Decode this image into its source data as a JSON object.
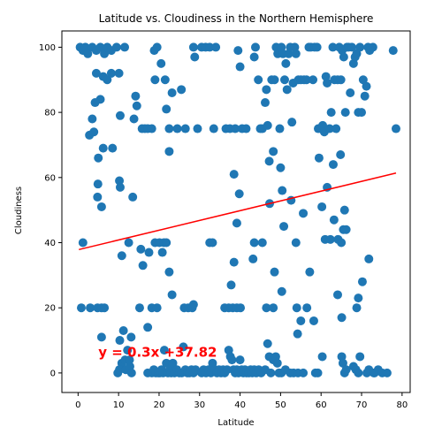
{
  "chart_data": {
    "type": "scatter",
    "title": "Latitude vs. Cloudiness in the Northern Hemisphere",
    "xlabel": "Latitude",
    "ylabel": "Cloudiness",
    "xlim": [
      -4,
      82
    ],
    "ylim": [
      -6,
      105
    ],
    "xticks": [
      0,
      10,
      20,
      30,
      40,
      50,
      60,
      70,
      80
    ],
    "yticks": [
      0,
      20,
      40,
      60,
      80,
      100
    ],
    "grid": false,
    "marker_color": "#1f77b4",
    "regression": {
      "slope": 0.3,
      "intercept": 37.82,
      "x_range": [
        0.2,
        78.5
      ],
      "color": "#ff0000",
      "equation": "y = 0.3x +37.82",
      "equation_anchor": [
        5,
        5
      ]
    },
    "series": [
      {
        "values": [
          [
            0.5,
            100
          ],
          [
            1.2,
            99
          ],
          [
            1.8,
            100
          ],
          [
            2.4,
            98
          ],
          [
            3.5,
            100
          ],
          [
            4.5,
            99
          ],
          [
            5.5,
            100
          ],
          [
            6.5,
            98
          ],
          [
            7.2,
            100
          ],
          [
            8.2,
            99
          ],
          [
            9.5,
            100
          ],
          [
            11.5,
            100
          ],
          [
            2.8,
            73
          ],
          [
            3.5,
            78
          ],
          [
            4.5,
            92
          ],
          [
            5.5,
            84
          ],
          [
            6.2,
            91
          ],
          [
            7.2,
            90
          ],
          [
            8.2,
            92
          ],
          [
            10.1,
            92
          ],
          [
            10.4,
            79
          ],
          [
            3.9,
            74
          ],
          [
            4.2,
            83
          ],
          [
            4.8,
            54
          ],
          [
            4.9,
            58
          ],
          [
            5.0,
            66
          ],
          [
            5.8,
            51
          ],
          [
            6.2,
            69
          ],
          [
            8.5,
            69
          ],
          [
            10.2,
            59
          ],
          [
            10.4,
            57
          ],
          [
            10.8,
            36
          ],
          [
            13.5,
            54
          ],
          [
            12.5,
            40
          ],
          [
            13.8,
            78
          ],
          [
            14.5,
            82
          ],
          [
            14.2,
            85
          ],
          [
            15.8,
            75
          ],
          [
            16.5,
            75
          ],
          [
            17.2,
            75
          ],
          [
            18.2,
            75
          ],
          [
            19.0,
            90
          ],
          [
            18.8,
            99
          ],
          [
            19.5,
            100
          ],
          [
            20.5,
            95
          ],
          [
            21.5,
            90
          ],
          [
            21.8,
            81
          ],
          [
            22.5,
            75
          ],
          [
            22.5,
            68
          ],
          [
            23.2,
            86
          ],
          [
            24.5,
            75
          ],
          [
            25.5,
            87
          ],
          [
            26.5,
            75
          ],
          [
            28.5,
            100
          ],
          [
            28.8,
            97
          ],
          [
            29.5,
            75
          ],
          [
            30.5,
            100
          ],
          [
            31.5,
            100
          ],
          [
            32.5,
            100
          ],
          [
            33.5,
            75
          ],
          [
            34.0,
            100
          ],
          [
            36.5,
            75
          ],
          [
            37.5,
            75
          ],
          [
            38.5,
            61
          ],
          [
            38.8,
            75
          ],
          [
            39.5,
            99
          ],
          [
            40.0,
            94
          ],
          [
            40.5,
            75
          ],
          [
            41.5,
            75
          ],
          [
            43.5,
            97
          ],
          [
            43.8,
            100
          ],
          [
            44.5,
            90
          ],
          [
            45.0,
            75
          ],
          [
            45.5,
            75
          ],
          [
            46.2,
            83
          ],
          [
            46.5,
            87
          ],
          [
            46.8,
            76
          ],
          [
            47.2,
            65
          ],
          [
            47.8,
            90
          ],
          [
            48.2,
            68
          ],
          [
            48.5,
            90
          ],
          [
            48.9,
            100
          ],
          [
            49.3,
            98
          ],
          [
            49.8,
            75
          ],
          [
            50.2,
            100
          ],
          [
            50.6,
            98
          ],
          [
            51.0,
            90
          ],
          [
            51.3,
            95
          ],
          [
            51.6,
            87
          ],
          [
            52.0,
            98
          ],
          [
            52.4,
            100
          ],
          [
            52.8,
            77
          ],
          [
            53.1,
            89
          ],
          [
            53.5,
            100
          ],
          [
            53.8,
            98
          ],
          [
            54.4,
            90
          ],
          [
            55.0,
            90
          ],
          [
            55.8,
            90
          ],
          [
            56.4,
            90
          ],
          [
            57.0,
            100
          ],
          [
            57.5,
            100
          ],
          [
            58.0,
            90
          ],
          [
            58.4,
            100
          ],
          [
            59.0,
            100
          ],
          [
            59.3,
            75
          ],
          [
            60.0,
            75
          ],
          [
            60.4,
            76
          ],
          [
            60.8,
            74
          ],
          [
            61.2,
            91
          ],
          [
            61.5,
            89
          ],
          [
            62.1,
            75
          ],
          [
            62.5,
            80
          ],
          [
            62.9,
            100
          ],
          [
            63.3,
            90
          ],
          [
            63.7,
            75
          ],
          [
            64.1,
            90
          ],
          [
            64.5,
            100
          ],
          [
            64.9,
            90
          ],
          [
            65.2,
            99
          ],
          [
            65.6,
            97
          ],
          [
            66.0,
            80
          ],
          [
            66.4,
            100
          ],
          [
            66.8,
            100
          ],
          [
            67.2,
            86
          ],
          [
            67.6,
            100
          ],
          [
            68.0,
            95
          ],
          [
            68.4,
            97
          ],
          [
            68.8,
            98
          ],
          [
            69.2,
            80
          ],
          [
            69.6,
            100
          ],
          [
            70.0,
            80
          ],
          [
            70.4,
            90
          ],
          [
            70.8,
            85
          ],
          [
            71.2,
            88
          ],
          [
            71.6,
            100
          ],
          [
            72.0,
            99
          ],
          [
            72.8,
            100
          ],
          [
            77.8,
            99
          ],
          [
            78.5,
            75
          ],
          [
            59.5,
            66
          ],
          [
            63.0,
            64
          ],
          [
            64.8,
            67
          ],
          [
            65.5,
            44
          ],
          [
            65.8,
            50
          ],
          [
            60.2,
            51
          ],
          [
            61.5,
            57
          ],
          [
            63.2,
            47
          ],
          [
            64.2,
            41
          ],
          [
            65.0,
            40
          ],
          [
            66.2,
            44
          ],
          [
            61.0,
            41
          ],
          [
            62.3,
            41
          ],
          [
            64.1,
            24
          ],
          [
            65.1,
            17
          ],
          [
            68.8,
            20
          ],
          [
            69.2,
            23
          ],
          [
            70.2,
            28
          ],
          [
            71.8,
            35
          ],
          [
            50.0,
            63
          ],
          [
            50.4,
            56
          ],
          [
            50.8,
            45
          ],
          [
            52.6,
            53
          ],
          [
            53.8,
            40
          ],
          [
            55.6,
            49
          ],
          [
            50.3,
            25
          ],
          [
            57.2,
            31
          ],
          [
            54.0,
            20
          ],
          [
            55.0,
            16
          ],
          [
            56.5,
            20
          ],
          [
            58.2,
            16
          ],
          [
            54.2,
            12
          ],
          [
            47.3,
            52
          ],
          [
            46.5,
            20
          ],
          [
            48.2,
            20
          ],
          [
            48.5,
            31
          ],
          [
            43.2,
            35
          ],
          [
            43.5,
            40
          ],
          [
            45.5,
            40
          ],
          [
            39.2,
            46
          ],
          [
            39.8,
            55
          ],
          [
            38.5,
            34
          ],
          [
            37.8,
            27
          ],
          [
            36.2,
            20
          ],
          [
            37.2,
            20
          ],
          [
            38.2,
            20
          ],
          [
            39.2,
            20
          ],
          [
            40.1,
            20
          ],
          [
            32.5,
            40
          ],
          [
            33.2,
            40
          ],
          [
            26.2,
            20
          ],
          [
            27.2,
            20
          ],
          [
            28.5,
            21
          ],
          [
            28.2,
            20
          ],
          [
            23.2,
            24
          ],
          [
            22.5,
            31
          ],
          [
            20.8,
            37
          ],
          [
            19.0,
            40
          ],
          [
            20.1,
            40
          ],
          [
            21.2,
            40
          ],
          [
            21.8,
            40
          ],
          [
            18.2,
            20
          ],
          [
            19.5,
            20
          ],
          [
            17.5,
            37
          ],
          [
            16.0,
            33
          ],
          [
            15.5,
            38
          ],
          [
            15.2,
            20
          ],
          [
            17.2,
            14
          ],
          [
            0.8,
            20
          ],
          [
            1.2,
            40
          ],
          [
            3.0,
            20
          ],
          [
            4.8,
            20
          ],
          [
            5.8,
            20
          ],
          [
            6.5,
            20
          ],
          [
            5.8,
            11
          ],
          [
            10.3,
            10
          ],
          [
            10.8,
            3
          ],
          [
            11.2,
            13
          ],
          [
            11.6,
            4
          ],
          [
            12.2,
            7
          ],
          [
            12.7,
            4
          ],
          [
            13.1,
            11
          ],
          [
            12.5,
            1
          ],
          [
            9.8,
            0
          ],
          [
            10.2,
            1
          ],
          [
            11.8,
            1
          ],
          [
            12.8,
            2
          ],
          [
            13.2,
            0
          ],
          [
            17.2,
            0
          ],
          [
            18.2,
            0
          ],
          [
            18.7,
            1
          ],
          [
            19.2,
            0
          ],
          [
            19.8,
            0
          ],
          [
            20.2,
            0
          ],
          [
            20.6,
            1
          ],
          [
            21.0,
            0
          ],
          [
            21.3,
            7
          ],
          [
            21.8,
            3
          ],
          [
            22.2,
            0
          ],
          [
            22.6,
            1
          ],
          [
            23.0,
            0
          ],
          [
            23.4,
            3
          ],
          [
            23.8,
            0
          ],
          [
            24.4,
            1
          ],
          [
            25.0,
            0
          ],
          [
            25.6,
            0
          ],
          [
            26.0,
            8
          ],
          [
            26.5,
            1
          ],
          [
            27.0,
            0
          ],
          [
            27.5,
            0
          ],
          [
            28.0,
            1
          ],
          [
            28.5,
            0
          ],
          [
            29.0,
            1
          ],
          [
            30.5,
            0
          ],
          [
            31.0,
            1
          ],
          [
            31.6,
            0
          ],
          [
            32.2,
            1
          ],
          [
            32.8,
            0
          ],
          [
            33.2,
            3
          ],
          [
            33.8,
            1
          ],
          [
            34.3,
            0
          ],
          [
            34.8,
            1
          ],
          [
            35.3,
            0
          ],
          [
            35.8,
            1
          ],
          [
            36.2,
            0
          ],
          [
            36.8,
            1
          ],
          [
            37.2,
            7
          ],
          [
            37.6,
            5
          ],
          [
            38.0,
            4
          ],
          [
            38.4,
            1
          ],
          [
            38.8,
            0
          ],
          [
            39.2,
            1
          ],
          [
            39.6,
            0
          ],
          [
            40.0,
            4
          ],
          [
            40.4,
            1
          ],
          [
            40.8,
            0
          ],
          [
            41.2,
            1
          ],
          [
            41.6,
            0
          ],
          [
            42.2,
            0
          ],
          [
            42.6,
            1
          ],
          [
            43.0,
            0
          ],
          [
            43.5,
            1
          ],
          [
            44.0,
            0
          ],
          [
            44.6,
            1
          ],
          [
            45.2,
            0
          ],
          [
            46.2,
            1
          ],
          [
            46.8,
            9
          ],
          [
            47.2,
            5
          ],
          [
            47.6,
            0
          ],
          [
            48.2,
            4
          ],
          [
            48.8,
            5
          ],
          [
            49.2,
            3
          ],
          [
            49.6,
            0
          ],
          [
            50.2,
            0
          ],
          [
            51.2,
            1
          ],
          [
            52.4,
            0
          ],
          [
            53.2,
            0
          ],
          [
            54.3,
            0
          ],
          [
            55.6,
            0
          ],
          [
            58.6,
            0
          ],
          [
            59.2,
            0
          ],
          [
            60.3,
            5
          ],
          [
            65.1,
            5
          ],
          [
            65.4,
            3
          ],
          [
            65.8,
            0
          ],
          [
            66.2,
            1
          ],
          [
            68.0,
            2
          ],
          [
            68.6,
            1
          ],
          [
            69.2,
            0
          ],
          [
            69.6,
            5
          ],
          [
            71.3,
            0
          ],
          [
            71.8,
            1
          ],
          [
            73.2,
            0
          ],
          [
            74.1,
            1
          ],
          [
            73.0,
            0
          ],
          [
            75.1,
            0
          ],
          [
            76.3,
            0
          ]
        ]
      }
    ]
  }
}
